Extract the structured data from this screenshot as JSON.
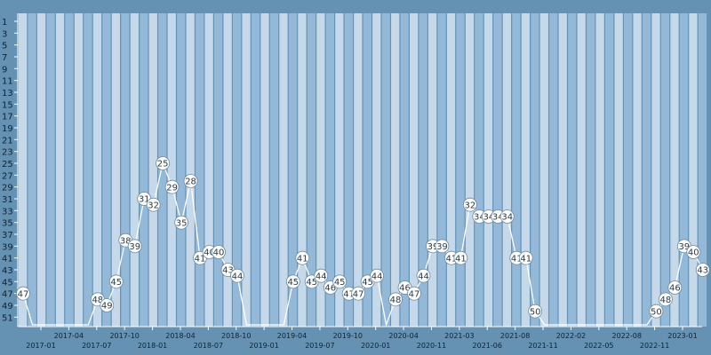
{
  "chart_data": {
    "type": "line",
    "title": "",
    "xlabel": "",
    "ylabel": "",
    "y_inverted": true,
    "ylim": [
      1,
      52
    ],
    "y_ticks": [
      1,
      3,
      5,
      7,
      9,
      11,
      13,
      15,
      17,
      19,
      21,
      23,
      25,
      27,
      29,
      31,
      33,
      35,
      37,
      39,
      41,
      43,
      45,
      47,
      49,
      51
    ],
    "x_tick_labels": [
      "2017-01",
      "2017-04",
      "2017-07",
      "2017-10",
      "2018-01",
      "2018-04",
      "2018-07",
      "2018-10",
      "2019-01",
      "2019-04",
      "2019-07",
      "2019-10",
      "2020-01",
      "2020-04",
      "2020-11",
      "2021-03",
      "2021-06",
      "2021-08",
      "2021-11",
      "2022-02",
      "2022-05",
      "2022-08",
      "2022-11",
      "2023-01"
    ],
    "grid": true,
    "legend": "none",
    "colors": {
      "background": "#6592b3",
      "band_light": "#c6d9ea",
      "band_mid": "#94b8d7",
      "line": "#ffffff",
      "marker_fill": "#ffffff",
      "label_text": "#2a3a46"
    },
    "series": [
      {
        "values": [
          47,
          null,
          null,
          null,
          null,
          null,
          null,
          null,
          48,
          49,
          45,
          38,
          39,
          31,
          32,
          25,
          29,
          35,
          28,
          41,
          40,
          40,
          43,
          44,
          null,
          null,
          null,
          null,
          null,
          45,
          41,
          45,
          44,
          46,
          45,
          47,
          47,
          45,
          44,
          null,
          48,
          46,
          47,
          44,
          39,
          39,
          41,
          41,
          32,
          34,
          34,
          34,
          34,
          41,
          41,
          50,
          null,
          null,
          null,
          null,
          null,
          null,
          null,
          null,
          null,
          null,
          null,
          null,
          50,
          48,
          46,
          39,
          40,
          43
        ],
        "labels": [
          "47",
          "",
          "",
          "",
          "",
          "",
          "",
          "",
          "48",
          "49",
          "45",
          "38",
          "39",
          "31",
          "32",
          "25",
          "29",
          "35",
          "28",
          "41",
          "40",
          "40",
          "43",
          "44",
          "",
          "",
          "",
          "",
          "",
          "45",
          "41",
          "45",
          "44",
          "46",
          "45",
          "47",
          "47",
          "45",
          "44",
          "",
          "48",
          "46",
          "47",
          "44",
          "39",
          "39",
          "41",
          "41",
          "32",
          "34",
          "34",
          "34",
          "34",
          "41",
          "41",
          "50",
          "",
          "",
          "",
          "",
          "",
          "",
          "",
          "",
          "",
          "",
          "",
          "",
          "50",
          "48",
          "46",
          "39",
          "40",
          "43"
        ]
      }
    ]
  }
}
